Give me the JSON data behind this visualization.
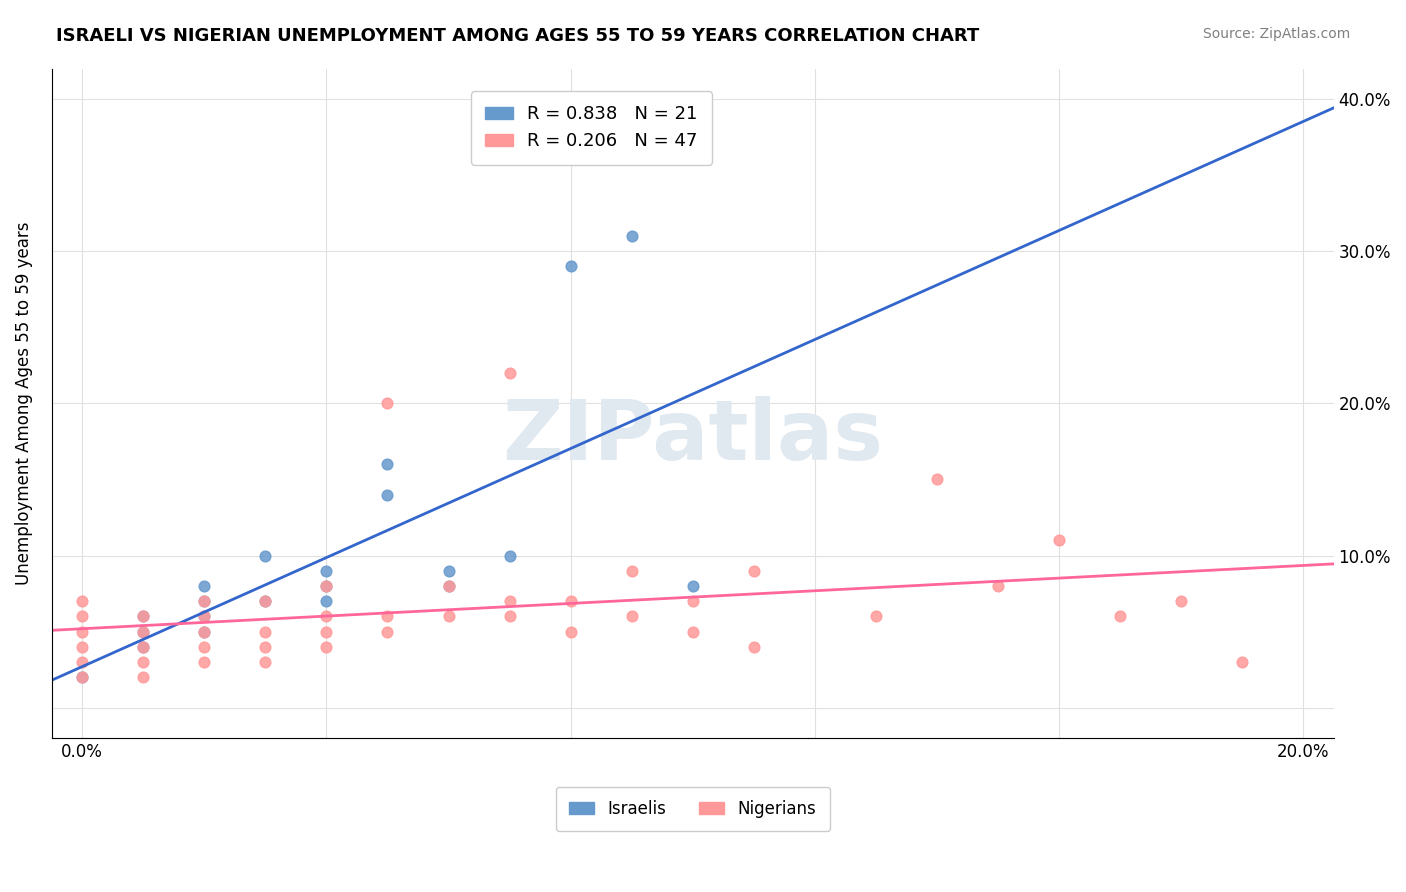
{
  "title": "ISRAELI VS NIGERIAN UNEMPLOYMENT AMONG AGES 55 TO 59 YEARS CORRELATION CHART",
  "source": "Source: ZipAtlas.com",
  "xlabel": "",
  "ylabel": "Unemployment Among Ages 55 to 59 years",
  "x_min": 0.0,
  "x_max": 0.2,
  "y_min": -0.02,
  "y_max": 0.42,
  "x_ticks": [
    0.0,
    0.04,
    0.08,
    0.12,
    0.16,
    0.2
  ],
  "x_tick_labels": [
    "0.0%",
    "",
    "",
    "",
    "",
    "20.0%"
  ],
  "y_ticks": [
    0.0,
    0.1,
    0.2,
    0.3,
    0.4
  ],
  "y_tick_labels": [
    "",
    "10.0%",
    "20.0%",
    "30.0%",
    "40.0%"
  ],
  "israel_color": "#6699cc",
  "nigeria_color": "#ff9999",
  "israel_line_color": "#3366cc",
  "nigeria_line_color": "#ff6699",
  "israel_r": 0.838,
  "israel_n": 21,
  "nigeria_r": 0.206,
  "nigeria_n": 47,
  "israel_x": [
    0.0,
    0.01,
    0.01,
    0.01,
    0.02,
    0.02,
    0.02,
    0.02,
    0.03,
    0.03,
    0.04,
    0.04,
    0.04,
    0.05,
    0.05,
    0.06,
    0.06,
    0.07,
    0.08,
    0.09,
    0.1
  ],
  "israel_y": [
    0.02,
    0.04,
    0.05,
    0.06,
    0.05,
    0.06,
    0.07,
    0.08,
    0.07,
    0.1,
    0.07,
    0.08,
    0.09,
    0.14,
    0.16,
    0.08,
    0.09,
    0.1,
    0.29,
    0.31,
    0.08
  ],
  "nigeria_x": [
    0.0,
    0.0,
    0.0,
    0.0,
    0.0,
    0.0,
    0.01,
    0.01,
    0.01,
    0.01,
    0.01,
    0.02,
    0.02,
    0.02,
    0.02,
    0.02,
    0.03,
    0.03,
    0.03,
    0.03,
    0.04,
    0.04,
    0.04,
    0.04,
    0.05,
    0.05,
    0.05,
    0.06,
    0.06,
    0.07,
    0.07,
    0.07,
    0.08,
    0.08,
    0.09,
    0.09,
    0.1,
    0.1,
    0.11,
    0.11,
    0.13,
    0.14,
    0.15,
    0.16,
    0.17,
    0.18,
    0.19
  ],
  "nigeria_y": [
    0.02,
    0.03,
    0.04,
    0.05,
    0.06,
    0.07,
    0.02,
    0.03,
    0.04,
    0.05,
    0.06,
    0.03,
    0.04,
    0.05,
    0.06,
    0.07,
    0.03,
    0.04,
    0.05,
    0.07,
    0.04,
    0.05,
    0.06,
    0.08,
    0.05,
    0.06,
    0.2,
    0.06,
    0.08,
    0.06,
    0.07,
    0.22,
    0.05,
    0.07,
    0.06,
    0.09,
    0.05,
    0.07,
    0.04,
    0.09,
    0.06,
    0.15,
    0.08,
    0.11,
    0.06,
    0.07,
    0.03
  ],
  "watermark": "ZIPatlas",
  "watermark_color": "#e0e8f0"
}
